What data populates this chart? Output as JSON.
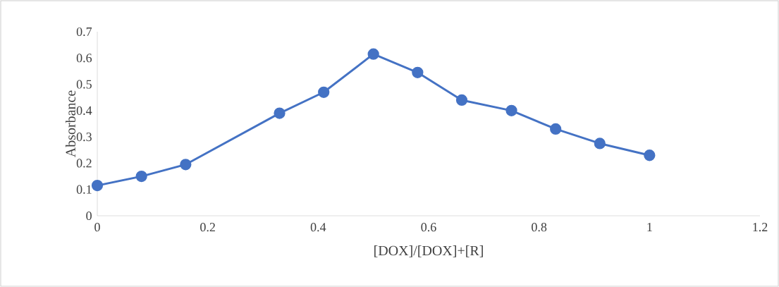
{
  "chart_data": {
    "type": "line",
    "xlabel": "[DOX]/[DOX]+[R]",
    "ylabel": "Absorbance",
    "x": [
      0,
      0.08,
      0.16,
      0.33,
      0.41,
      0.5,
      0.58,
      0.66,
      0.75,
      0.83,
      0.91,
      1.0
    ],
    "series": [
      {
        "color": "#4472c4",
        "values": [
          0.115,
          0.15,
          0.195,
          0.39,
          0.47,
          0.615,
          0.545,
          0.44,
          0.4,
          0.33,
          0.275,
          0.23
        ]
      }
    ],
    "xlim": [
      0,
      1.2
    ],
    "xticks": [
      0,
      0.2,
      0.4,
      0.6,
      0.8,
      1,
      1.2
    ],
    "ylim": [
      0,
      0.7
    ],
    "yticks": [
      0,
      0.1,
      0.2,
      0.3,
      0.4,
      0.5,
      0.6,
      0.7
    ],
    "marker": "circle",
    "line_style": "solid",
    "grid": false,
    "legend": false
  }
}
